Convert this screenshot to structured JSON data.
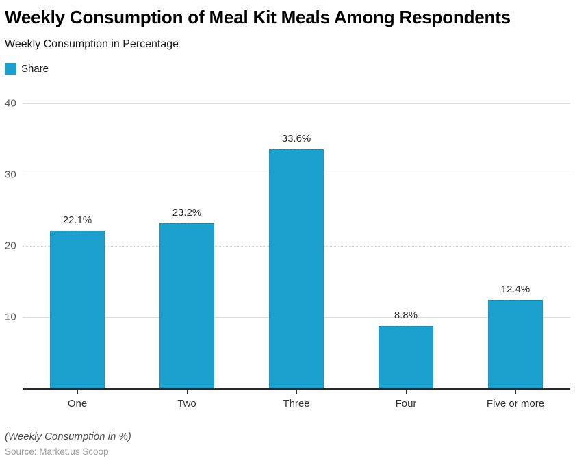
{
  "page": {
    "title": "Weekly Consumption of Meal Kit Meals Among Respondents",
    "subtitle": "Weekly Consumption in Percentage",
    "legend": {
      "label": "Share",
      "swatch_color": "#1ba0ce"
    },
    "footnote": "(Weekly Consumption in %)",
    "source": "Source: Market.us Scoop"
  },
  "chart_data": {
    "type": "bar",
    "title": "Weekly Consumption of Meal Kit Meals Among Respondents",
    "subtitle": "Weekly Consumption in Percentage",
    "categories": [
      "One",
      "Two",
      "Three",
      "Four",
      "Five or more"
    ],
    "series": [
      {
        "name": "Share",
        "values": [
          22.1,
          23.2,
          33.6,
          8.8,
          12.4
        ]
      }
    ],
    "value_labels": [
      "22.1%",
      "23.2%",
      "33.6%",
      "8.8%",
      "12.4%"
    ],
    "xlabel": "",
    "ylabel": "",
    "ylim": [
      0,
      40
    ],
    "yticks": [
      {
        "value": 10,
        "style": "solid"
      },
      {
        "value": 20,
        "style": "dotted"
      },
      {
        "value": 30,
        "style": "solid"
      },
      {
        "value": 40,
        "style": "solid"
      }
    ],
    "grid": true,
    "legend_position": "top-left",
    "bar_color": "#1ba0ce"
  }
}
